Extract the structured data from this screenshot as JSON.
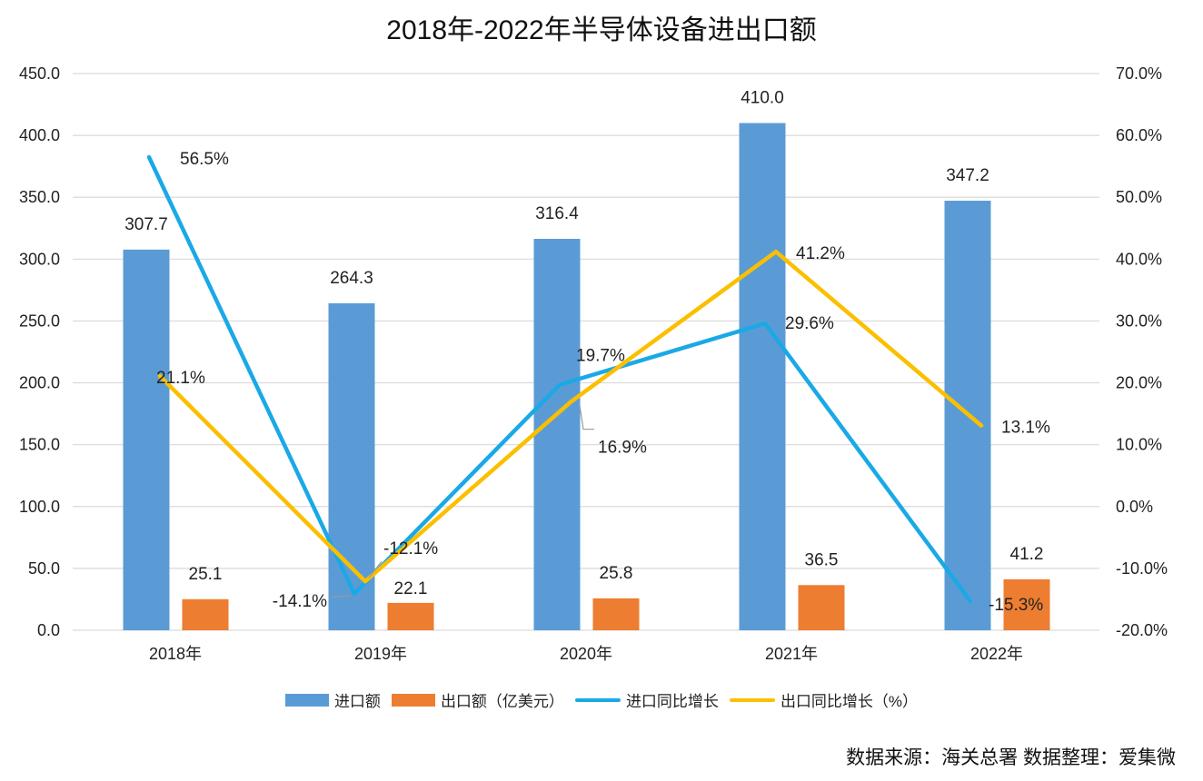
{
  "chart_data": {
    "type": "bar",
    "title": "2018年-2022年半导体设备进出口额",
    "categories": [
      "2018年",
      "2019年",
      "2020年",
      "2021年",
      "2022年"
    ],
    "series": [
      {
        "name": "进口额",
        "kind": "bar",
        "axis": "left",
        "color": "#5b9bd5",
        "values": [
          307.7,
          264.3,
          316.4,
          410.0,
          347.2
        ],
        "labels": [
          "307.7",
          "264.3",
          "316.4",
          "410.0",
          "347.2"
        ]
      },
      {
        "name": "出口额（亿美元）",
        "kind": "bar",
        "axis": "left",
        "color": "#ed7d31",
        "values": [
          25.1,
          22.1,
          25.8,
          36.5,
          41.2
        ],
        "labels": [
          "25.1",
          "22.1",
          "25.8",
          "36.5",
          "41.2"
        ]
      },
      {
        "name": "进口同比增长",
        "kind": "line",
        "axis": "right",
        "color": "#1aa9e6",
        "values": [
          56.5,
          -14.1,
          19.7,
          29.6,
          -15.3
        ],
        "labels": [
          "56.5%",
          "-14.1%",
          "19.7%",
          "29.6%",
          "-15.3%"
        ]
      },
      {
        "name": "出口同比增长（%）",
        "kind": "line",
        "axis": "right",
        "color": "#fbbf00",
        "values": [
          21.1,
          -12.1,
          16.9,
          41.2,
          13.1
        ],
        "labels": [
          "21.1%",
          "-12.1%",
          "16.9%",
          "41.2%",
          "13.1%"
        ]
      }
    ],
    "y_left": {
      "min": 0,
      "max": 450,
      "step": 50,
      "ticks": [
        "0.0",
        "50.0",
        "100.0",
        "150.0",
        "200.0",
        "250.0",
        "300.0",
        "350.0",
        "400.0",
        "450.0"
      ]
    },
    "y_right": {
      "min": -20,
      "max": 70,
      "step": 10,
      "ticks": [
        "-20.0%",
        "-10.0%",
        "0.0%",
        "10.0%",
        "20.0%",
        "30.0%",
        "40.0%",
        "50.0%",
        "60.0%",
        "70.0%"
      ]
    },
    "grid": true,
    "legend_position": "bottom"
  },
  "legend": {
    "import_label": "进口额",
    "export_label": "出口额（亿美元）",
    "import_growth_label": "进口同比增长",
    "export_growth_label": "出口同比增长（%）"
  },
  "source_note": "数据来源：海关总署  数据整理：爱集微"
}
